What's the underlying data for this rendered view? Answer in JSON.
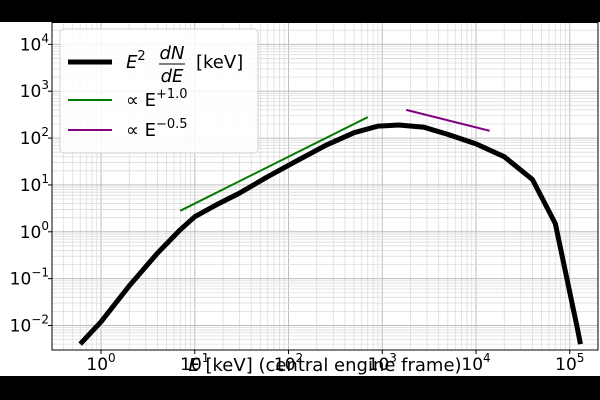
{
  "chart_data": {
    "type": "line",
    "title": "",
    "xlabel": {
      "symbol": "E",
      "text": " [keV] (central engine frame)"
    },
    "ylabel": "",
    "x_scale": "log",
    "y_scale": "log",
    "xlim": [
      0.3,
      200000
    ],
    "ylim": [
      0.003,
      30000
    ],
    "grid": true,
    "legend_position": "top-left",
    "x_ticks": [
      {
        "value": 1,
        "base": "10",
        "exp": "0"
      },
      {
        "value": 10,
        "base": "10",
        "exp": "1"
      },
      {
        "value": 100,
        "base": "10",
        "exp": "2"
      },
      {
        "value": 1000,
        "base": "10",
        "exp": "3"
      },
      {
        "value": 10000,
        "base": "10",
        "exp": "4"
      },
      {
        "value": 100000,
        "base": "10",
        "exp": "5"
      }
    ],
    "y_ticks": [
      {
        "value": 0.01,
        "base": "10",
        "exp": "−2"
      },
      {
        "value": 0.1,
        "base": "10",
        "exp": "−1"
      },
      {
        "value": 1,
        "base": "10",
        "exp": "0"
      },
      {
        "value": 10,
        "base": "10",
        "exp": "1"
      },
      {
        "value": 100,
        "base": "10",
        "exp": "2"
      },
      {
        "value": 1000,
        "base": "10",
        "exp": "3"
      },
      {
        "value": 10000,
        "base": "10",
        "exp": "4"
      }
    ],
    "series": [
      {
        "name": "E^2 dN/dE [keV]",
        "color": "#000000",
        "x": [
          0.6,
          1,
          2,
          4,
          7,
          10,
          18,
          30,
          60,
          120,
          250,
          500,
          900,
          1500,
          2800,
          5000,
          10000,
          20000,
          40000,
          70000,
          120000,
          130000
        ],
        "y": [
          0.004,
          0.012,
          0.07,
          0.35,
          1.1,
          2.1,
          4.0,
          6.7,
          15,
          32,
          70,
          130,
          180,
          190,
          170,
          120,
          75,
          40,
          13,
          1.5,
          0.009,
          0.004
        ]
      },
      {
        "name": "∝ E^+1.0",
        "color": "#007a00",
        "x": [
          7,
          700
        ],
        "y": [
          2.8,
          280
        ]
      },
      {
        "name": "∝ E^−0.5",
        "color": "#800080",
        "x": [
          1800,
          14000
        ],
        "y": [
          400,
          143
        ]
      }
    ],
    "legend": [
      {
        "kind": "main",
        "prefix": "E",
        "sup": "2",
        "num": "dN",
        "den": "dE",
        "suffix": "[keV]",
        "color": "#000000"
      },
      {
        "kind": "power",
        "prefix": "∝ E",
        "sup": "+1.0",
        "color": "#007a00"
      },
      {
        "kind": "power",
        "prefix": "∝ E",
        "sup": "−0.5",
        "color": "#800080"
      }
    ]
  }
}
